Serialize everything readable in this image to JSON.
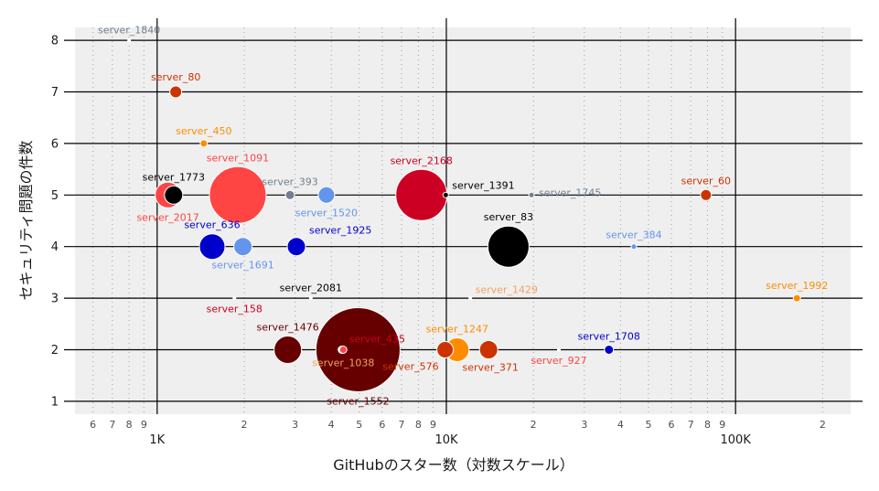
{
  "chart_data": {
    "type": "scatter",
    "title": "",
    "xlabel": "GitHubのスター数（対数スケール）",
    "ylabel": "セキュリティ問題の件数",
    "x_scale": "log10",
    "xlim": [
      520,
      250000
    ],
    "ylim": [
      0.75,
      8.25
    ],
    "y_ticks": [
      1,
      2,
      3,
      4,
      5,
      6,
      7,
      8
    ],
    "x_major_ticks": [
      {
        "value": 1000,
        "label": "1K"
      },
      {
        "value": 10000,
        "label": "10K"
      },
      {
        "value": 100000,
        "label": "100K"
      }
    ],
    "x_minor_ticks": [
      {
        "value": 600,
        "label": "6"
      },
      {
        "value": 700,
        "label": "7"
      },
      {
        "value": 800,
        "label": "8"
      },
      {
        "value": 900,
        "label": "9"
      },
      {
        "value": 2000,
        "label": "2"
      },
      {
        "value": 3000,
        "label": "3"
      },
      {
        "value": 4000,
        "label": "4"
      },
      {
        "value": 5000,
        "label": "5"
      },
      {
        "value": 6000,
        "label": "6"
      },
      {
        "value": 7000,
        "label": "7"
      },
      {
        "value": 8000,
        "label": "8"
      },
      {
        "value": 9000,
        "label": "9"
      },
      {
        "value": 20000,
        "label": "2"
      },
      {
        "value": 30000,
        "label": "3"
      },
      {
        "value": 40000,
        "label": "4"
      },
      {
        "value": 50000,
        "label": "5"
      },
      {
        "value": 60000,
        "label": "6"
      },
      {
        "value": 70000,
        "label": "7"
      },
      {
        "value": 80000,
        "label": "8"
      },
      {
        "value": 90000,
        "label": "9"
      },
      {
        "value": 200000,
        "label": "2"
      }
    ],
    "grid": true,
    "legend": "none",
    "points": [
      {
        "name": "server_1840",
        "x": 800,
        "y": 8,
        "size": 1,
        "color": "#ffffff",
        "label_color": "#708090",
        "label_pos": "above"
      },
      {
        "name": "server_80",
        "x": 1160,
        "y": 7,
        "size": 13,
        "color": "#cc3300",
        "label_color": "#cc3300",
        "label_pos": "above"
      },
      {
        "name": "server_450",
        "x": 1450,
        "y": 6,
        "size": 8,
        "color": "#ff8c00",
        "label_color": "#ff8c00",
        "label_pos": "above"
      },
      {
        "name": "server_1773",
        "x": 1140,
        "y": 5,
        "size": 20,
        "color": "#000000",
        "label_color": "#000000",
        "label_pos": "above"
      },
      {
        "name": "server_2017",
        "x": 1090,
        "y": 5,
        "size": 28,
        "color": "#ff4444",
        "label_color": "#ff4444",
        "label_pos": "below"
      },
      {
        "name": "server_1091",
        "x": 1900,
        "y": 5,
        "size": 62,
        "color": "#ff4444",
        "label_color": "#ff4444",
        "label_pos": "above"
      },
      {
        "name": "server_393",
        "x": 2880,
        "y": 5,
        "size": 10,
        "color": "#708090",
        "label_color": "#708090",
        "label_pos": "above"
      },
      {
        "name": "server_1520",
        "x": 3850,
        "y": 5,
        "size": 18,
        "color": "#6495ed",
        "label_color": "#6495ed",
        "label_pos": "below"
      },
      {
        "name": "server_2168",
        "x": 8200,
        "y": 5,
        "size": 56,
        "color": "#cc0022",
        "label_color": "#cc0022",
        "label_pos": "above"
      },
      {
        "name": "server_1391",
        "x": 9950,
        "y": 5,
        "size": 6,
        "color": "#000000",
        "label_color": "#000000",
        "label_pos": "above-right"
      },
      {
        "name": "server_1745",
        "x": 19700,
        "y": 5,
        "size": 6,
        "color": "#708090",
        "label_color": "#708090",
        "label_pos": "right"
      },
      {
        "name": "server_60",
        "x": 79000,
        "y": 5,
        "size": 12,
        "color": "#cc3300",
        "label_color": "#cc3300",
        "label_pos": "above"
      },
      {
        "name": "server_636",
        "x": 1550,
        "y": 4,
        "size": 28,
        "color": "#0000cc",
        "label_color": "#0000cc",
        "label_pos": "above"
      },
      {
        "name": "server_1691",
        "x": 1980,
        "y": 4,
        "size": 20,
        "color": "#6495ed",
        "label_color": "#6495ed",
        "label_pos": "below"
      },
      {
        "name": "server_1925",
        "x": 3030,
        "y": 4,
        "size": 20,
        "color": "#0000cc",
        "label_color": "#0000cc",
        "label_pos": "above-right"
      },
      {
        "name": "server_83",
        "x": 16400,
        "y": 4,
        "size": 45,
        "color": "#000000",
        "label_color": "#000000",
        "label_pos": "above"
      },
      {
        "name": "server_384",
        "x": 44500,
        "y": 4,
        "size": 6,
        "color": "#6495ed",
        "label_color": "#6495ed",
        "label_pos": "above"
      },
      {
        "name": "server_158",
        "x": 1850,
        "y": 3,
        "size": 1,
        "color": "#ffffff",
        "label_color": "#cc0022",
        "label_pos": "below"
      },
      {
        "name": "server_2081",
        "x": 3400,
        "y": 3,
        "size": 1,
        "color": "#ffffff",
        "label_color": "#000000",
        "label_pos": "above"
      },
      {
        "name": "server_1429",
        "x": 12100,
        "y": 3,
        "size": 1,
        "color": "#ffffff",
        "label_color": "#f4a460",
        "label_pos": "above-right"
      },
      {
        "name": "server_1992",
        "x": 163000,
        "y": 3,
        "size": 8,
        "color": "#ff8c00",
        "label_color": "#ff8c00",
        "label_pos": "above"
      },
      {
        "name": "server_1476",
        "x": 2830,
        "y": 2,
        "size": 30,
        "color": "#660000",
        "label_color": "#660000",
        "label_pos": "above"
      },
      {
        "name": "server_1552",
        "x": 4950,
        "y": 2,
        "size": 92,
        "color": "#660000",
        "label_color": "#660000",
        "label_pos": "below"
      },
      {
        "name": "server_435",
        "x": 4350,
        "y": 2,
        "size": 8,
        "color": "#ffffff",
        "label_color": "#cc0022",
        "label_pos": "above-right"
      },
      {
        "name": "server_1038",
        "x": 4400,
        "y": 2,
        "size": 8,
        "color": "#ff4444",
        "label_color": "#f4a460",
        "label_pos": "below"
      },
      {
        "name": "server_576",
        "x": 9900,
        "y": 2,
        "size": 18,
        "color": "#cc3300",
        "label_color": "#cc3300",
        "label_pos": "below-left"
      },
      {
        "name": "server_1247",
        "x": 10900,
        "y": 2,
        "size": 26,
        "color": "#ff8c00",
        "label_color": "#ff8c00",
        "label_pos": "above"
      },
      {
        "name": "server_371",
        "x": 14000,
        "y": 2,
        "size": 20,
        "color": "#cc3300",
        "label_color": "#cc3300",
        "label_pos": "below-right"
      },
      {
        "name": "server_927",
        "x": 24500,
        "y": 2,
        "size": 1,
        "color": "#ffffff",
        "label_color": "#ff4444",
        "label_pos": "below"
      },
      {
        "name": "server_1708",
        "x": 36500,
        "y": 2,
        "size": 10,
        "color": "#0000cc",
        "label_color": "#0000cc",
        "label_pos": "above"
      }
    ]
  }
}
